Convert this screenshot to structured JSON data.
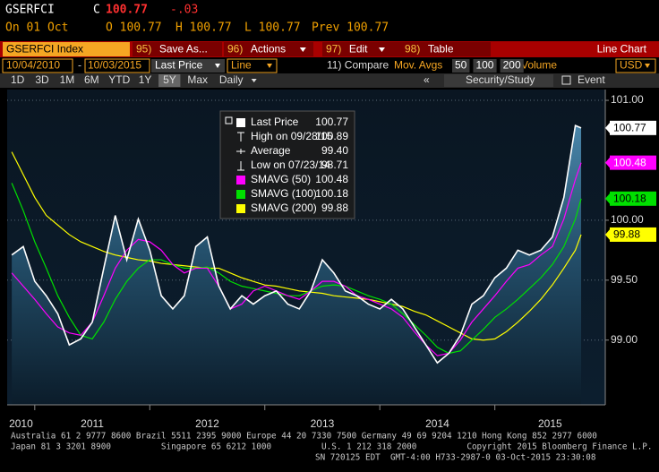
{
  "header": {
    "ticker": "GSERFCI",
    "close_label": "C",
    "price": "100.77",
    "change": "-.03",
    "date": "On 01 Oct",
    "open": "O 100.77",
    "high": "H 100.77",
    "low": "L 100.77",
    "prev": "Prev 100.77"
  },
  "toolbar": {
    "security": "GSERFCI Index",
    "items": [
      {
        "num": "95)",
        "label": "Save As..."
      },
      {
        "num": "96)",
        "label": "Actions"
      },
      {
        "num": "97)",
        "label": "Edit"
      },
      {
        "num": "98)",
        "label": "Table"
      }
    ],
    "view": "Line Chart"
  },
  "options": {
    "start": "10/04/2010",
    "separator": "-",
    "end": "10/03/2015",
    "field": "Last Price",
    "style": "Line",
    "compare": "11) Compare",
    "mov_avgs": "Mov. Avgs",
    "periods": [
      "50",
      "100",
      "200"
    ],
    "volume": "Volume",
    "currency": "USD"
  },
  "ranges": {
    "items": [
      "1D",
      "3D",
      "1M",
      "6M",
      "YTD",
      "1Y",
      "5Y",
      "Max"
    ],
    "selected": "5Y",
    "frequency": "Daily",
    "collapse": "«",
    "study": "Security/Study",
    "event": "Event"
  },
  "chart_data": {
    "type": "line",
    "x": [
      2010.8,
      2010.9,
      2011,
      2011.1,
      2011.2,
      2011.3,
      2011.4,
      2011.5,
      2011.6,
      2011.7,
      2011.8,
      2011.9,
      2012,
      2012.1,
      2012.2,
      2012.3,
      2012.4,
      2012.5,
      2012.6,
      2012.7,
      2012.8,
      2012.9,
      2013,
      2013.1,
      2013.2,
      2013.3,
      2013.4,
      2013.5,
      2013.6,
      2013.7,
      2013.8,
      2013.9,
      2014,
      2014.1,
      2014.2,
      2014.3,
      2014.4,
      2014.5,
      2014.6,
      2014.7,
      2014.8,
      2014.9,
      2015,
      2015.1,
      2015.2,
      2015.3,
      2015.4,
      2015.5,
      2015.6,
      2015.7,
      2015.75
    ],
    "xlim": [
      2010.76,
      2015.96
    ],
    "xticks": [
      2010,
      2011,
      2012,
      2013,
      2014,
      2015
    ],
    "ylim": [
      98.46,
      101.09
    ],
    "yticks": [
      {
        "value": 99,
        "label": "99.00"
      },
      {
        "value": 99.5,
        "label": "99.50"
      },
      {
        "value": 100,
        "label": "100.00"
      },
      {
        "value": 101,
        "label": "101.00"
      }
    ],
    "grid": true,
    "series": [
      {
        "name": "Last Price",
        "color": "#ffffff",
        "legend_value": "100.77",
        "end_label": "100.77",
        "values": [
          99.71,
          99.78,
          99.49,
          99.37,
          99.22,
          98.96,
          99.01,
          99.15,
          99.6,
          100.04,
          99.67,
          100.01,
          99.75,
          99.37,
          99.26,
          99.37,
          99.78,
          99.86,
          99.45,
          99.26,
          99.37,
          99.3,
          99.37,
          99.41,
          99.3,
          99.26,
          99.41,
          99.67,
          99.56,
          99.41,
          99.37,
          99.3,
          99.26,
          99.34,
          99.26,
          99.11,
          98.96,
          98.81,
          98.89,
          99.04,
          99.3,
          99.37,
          99.52,
          99.6,
          99.75,
          99.71,
          99.75,
          99.86,
          100.19,
          100.79,
          100.77
        ]
      },
      {
        "name": "SMAVG (50)",
        "color": "#ff00ff",
        "legend_value": "100.48",
        "end_label": "100.48",
        "values": [
          99.56,
          99.45,
          99.34,
          99.22,
          99.11,
          99.06,
          99.04,
          99.15,
          99.37,
          99.6,
          99.75,
          99.84,
          99.82,
          99.75,
          99.63,
          99.56,
          99.6,
          99.6,
          99.45,
          99.26,
          99.3,
          99.41,
          99.45,
          99.41,
          99.37,
          99.34,
          99.41,
          99.49,
          99.49,
          99.45,
          99.37,
          99.34,
          99.3,
          99.26,
          99.19,
          99.07,
          98.96,
          98.87,
          98.89,
          99,
          99.15,
          99.26,
          99.37,
          99.49,
          99.6,
          99.63,
          99.71,
          99.78,
          100.01,
          100.34,
          100.48
        ]
      },
      {
        "name": "SMAVG (100)",
        "color": "#00e000",
        "legend_value": "100.18",
        "end_label": "100.18",
        "values": [
          100.31,
          100.08,
          99.82,
          99.6,
          99.37,
          99.19,
          99.04,
          99.01,
          99.15,
          99.34,
          99.49,
          99.6,
          99.67,
          99.67,
          99.63,
          99.6,
          99.6,
          99.61,
          99.56,
          99.49,
          99.45,
          99.43,
          99.41,
          99.39,
          99.37,
          99.37,
          99.41,
          99.45,
          99.46,
          99.45,
          99.41,
          99.37,
          99.34,
          99.3,
          99.22,
          99.13,
          99.04,
          98.94,
          98.89,
          98.91,
          99,
          99.09,
          99.19,
          99.26,
          99.34,
          99.43,
          99.52,
          99.63,
          99.78,
          100.01,
          100.18
        ]
      },
      {
        "name": "SMAVG (200)",
        "color": "#ffff00",
        "legend_value": "99.88",
        "end_label": "99.88",
        "values": [
          100.57,
          100.38,
          100.19,
          100.04,
          99.96,
          99.88,
          99.82,
          99.78,
          99.74,
          99.71,
          99.69,
          99.67,
          99.66,
          99.64,
          99.63,
          99.62,
          99.61,
          99.6,
          99.6,
          99.56,
          99.52,
          99.49,
          99.46,
          99.45,
          99.43,
          99.41,
          99.4,
          99.39,
          99.37,
          99.36,
          99.35,
          99.34,
          99.32,
          99.3,
          99.28,
          99.24,
          99.21,
          99.16,
          99.11,
          99.06,
          99.01,
          99,
          99.01,
          99.07,
          99.15,
          99.24,
          99.34,
          99.46,
          99.6,
          99.75,
          99.88
        ]
      }
    ],
    "legend_extra": [
      {
        "label": "High on 09/28/15",
        "value": "100.89"
      },
      {
        "label": "Average",
        "value": "99.40"
      },
      {
        "label": "Low on 07/23/14",
        "value": "98.71"
      }
    ]
  },
  "footer": [
    "Australia 61 2 9777 8600 Brazil 5511 2395 9000 Europe 44 20 7330 7500 Germany 49 69 9204 1210 Hong Kong 852 2977 6000",
    "Japan 81 3 3201 8900          Singapore 65 6212 1000          U.S. 1 212 318 2000          Copyright 2015 Bloomberg Finance L.P.",
    "SN 720125 EDT  GMT-4:00 H733-2987-0 03-Oct-2015 23:30:08"
  ]
}
